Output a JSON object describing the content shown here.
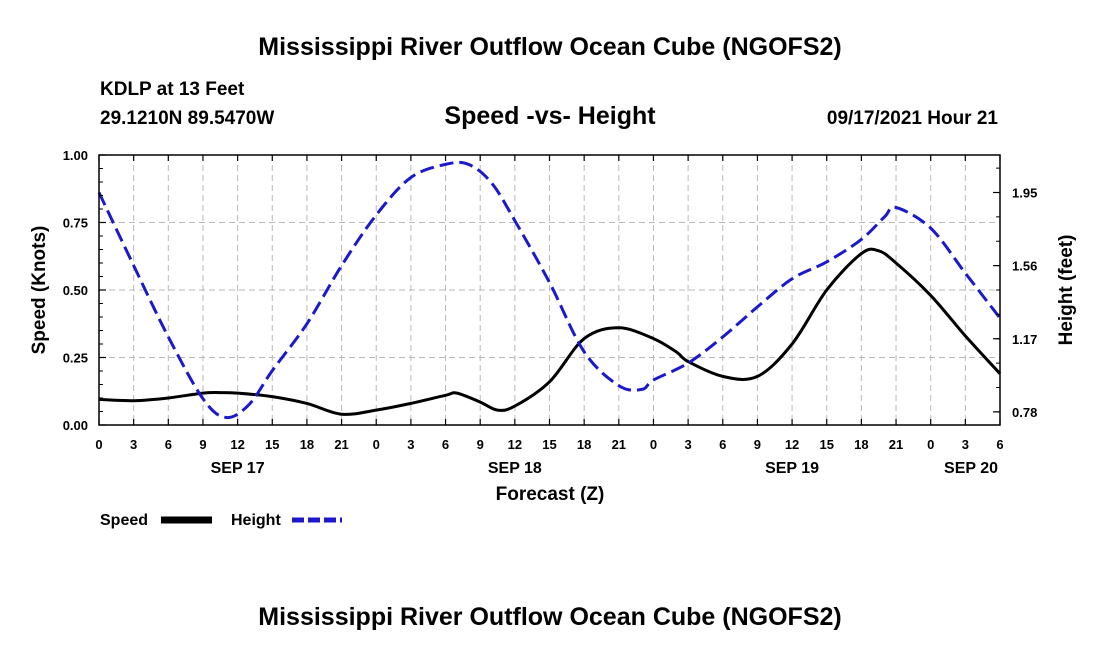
{
  "header": {
    "title": "Mississippi River Outflow Ocean Cube (NGOFS2)",
    "station": "KDLP at 13 Feet",
    "location": "29.1210N  89.5470W",
    "subtitle": "Speed -vs- Height",
    "timestamp": "09/17/2021 Hour 21"
  },
  "footer": {
    "title": "Mississippi River Outflow Ocean Cube (NGOFS2)"
  },
  "legend": {
    "speed_label": "Speed",
    "height_label": "Height"
  },
  "colors": {
    "speed": "#000000",
    "height": "#1a1acc",
    "grid": "#b8b8b8"
  },
  "chart_data": {
    "type": "line",
    "title": "Speed -vs- Height",
    "xlabel": "Forecast (Z)",
    "ylabel_left": "Speed (Knots)",
    "ylabel_right": "Height (feet)",
    "x_unit": "hours since Sep 17 00Z",
    "xlim": [
      0,
      78
    ],
    "x_ticks": [
      0,
      3,
      6,
      9,
      12,
      15,
      18,
      21,
      24,
      27,
      30,
      33,
      36,
      39,
      42,
      45,
      48,
      51,
      54,
      57,
      60,
      63,
      66,
      69,
      72,
      75,
      78
    ],
    "x_tick_labels": [
      "0",
      "3",
      "6",
      "9",
      "12",
      "15",
      "18",
      "21",
      "0",
      "3",
      "6",
      "9",
      "12",
      "15",
      "18",
      "21",
      "0",
      "3",
      "6",
      "9",
      "12",
      "15",
      "18",
      "21",
      "0",
      "3",
      "6"
    ],
    "day_labels": [
      {
        "x": 12,
        "label": "SEP 17"
      },
      {
        "x": 36,
        "label": "SEP 18"
      },
      {
        "x": 60,
        "label": "SEP 19"
      },
      {
        "x": 78,
        "label": "SEP 20"
      }
    ],
    "ylim_left": [
      0,
      1.0
    ],
    "y_ticks_left": [
      0.0,
      0.25,
      0.5,
      0.75,
      1.0
    ],
    "y_tick_labels_left": [
      "0.00",
      "0.25",
      "0.50",
      "0.75",
      "1.00"
    ],
    "ylim_right": [
      0.71,
      2.15
    ],
    "y_ticks_right": [
      0.78,
      1.17,
      1.56,
      1.95
    ],
    "y_tick_labels_right": [
      "0.78",
      "1.17",
      "1.56",
      "1.95"
    ],
    "grid": true,
    "series": [
      {
        "name": "Speed",
        "axis": "left",
        "style": "solid",
        "x": [
          0,
          3,
          6,
          9,
          10.5,
          12,
          15,
          18,
          21,
          24,
          27,
          30,
          31,
          33,
          34.5,
          36,
          39,
          42,
          45,
          48,
          50,
          51,
          54,
          57,
          60,
          63,
          66,
          67.5,
          69,
          72,
          75,
          78
        ],
        "y": [
          0.095,
          0.09,
          0.1,
          0.118,
          0.12,
          0.118,
          0.105,
          0.08,
          0.04,
          0.055,
          0.08,
          0.11,
          0.118,
          0.085,
          0.055,
          0.07,
          0.16,
          0.32,
          0.36,
          0.32,
          0.27,
          0.235,
          0.18,
          0.18,
          0.3,
          0.5,
          0.635,
          0.645,
          0.6,
          0.48,
          0.33,
          0.19
        ]
      },
      {
        "name": "Height",
        "axis": "right",
        "style": "dashed",
        "x": [
          0,
          3,
          6,
          9,
          11,
          13,
          15,
          18,
          21,
          24,
          27,
          30,
          32,
          34,
          36,
          39,
          42,
          45,
          47,
          48,
          51,
          54,
          57,
          60,
          63,
          66,
          68,
          69,
          72,
          75,
          78
        ],
        "y": [
          1.95,
          1.56,
          1.18,
          0.85,
          0.75,
          0.82,
          1.0,
          1.25,
          1.56,
          1.83,
          2.03,
          2.1,
          2.1,
          2.0,
          1.8,
          1.47,
          1.1,
          0.92,
          0.9,
          0.95,
          1.04,
          1.18,
          1.34,
          1.49,
          1.58,
          1.7,
          1.82,
          1.87,
          1.76,
          1.52,
          1.28
        ]
      }
    ]
  }
}
